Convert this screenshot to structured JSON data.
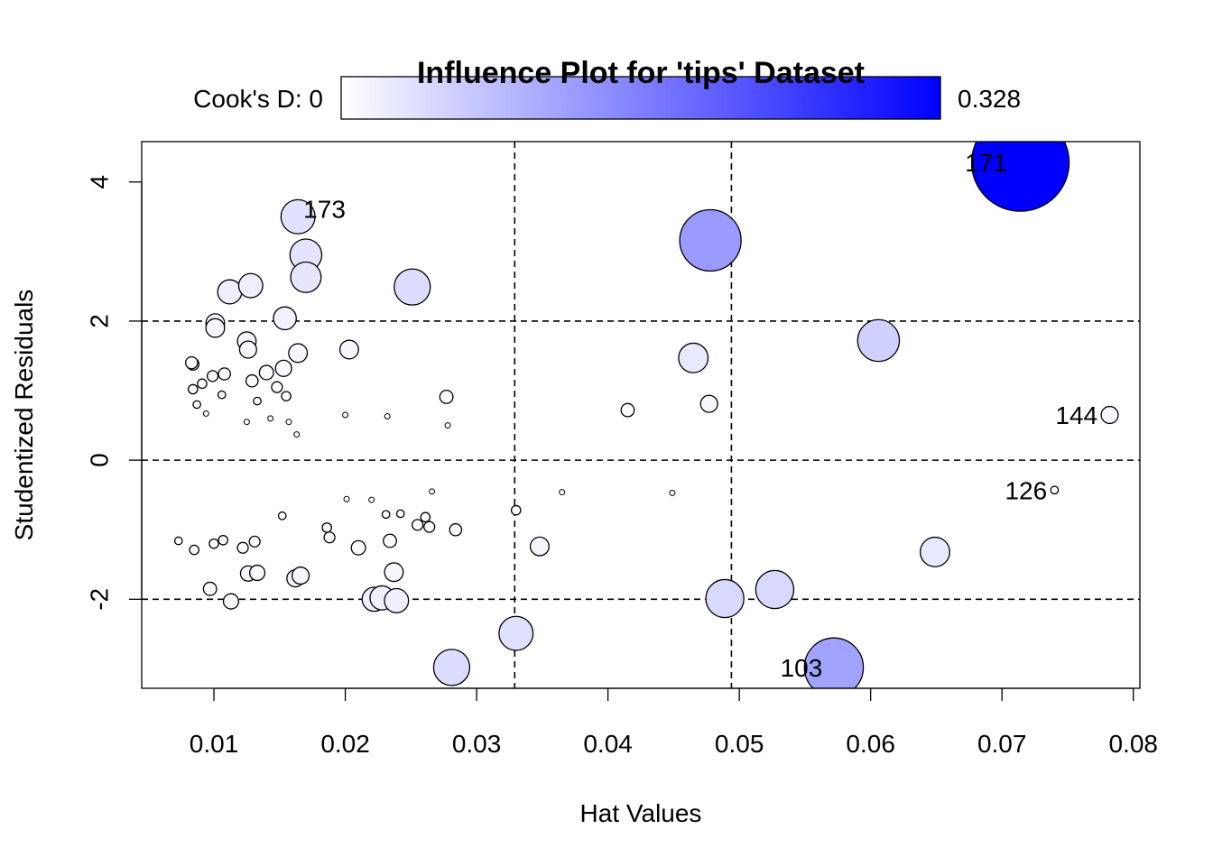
{
  "chart_data": {
    "type": "scatter",
    "title": "Influence Plot for 'tips' Dataset",
    "xlabel": "Hat Values",
    "ylabel": "Studentized Residuals",
    "xlim": [
      0.0045,
      0.0805
    ],
    "ylim": [
      -3.28,
      4.58
    ],
    "x_ticks": [
      0.01,
      0.02,
      0.03,
      0.04,
      0.05,
      0.06,
      0.07,
      0.08
    ],
    "x_tick_labels": [
      "0.01",
      "0.02",
      "0.03",
      "0.04",
      "0.05",
      "0.06",
      "0.07",
      "0.08"
    ],
    "y_ticks": [
      -2,
      0,
      2,
      4
    ],
    "y_tick_labels": [
      "-2",
      "0",
      "2",
      "4"
    ],
    "reference_lines": {
      "h": [
        -2,
        0,
        2
      ],
      "v": [
        0.0329,
        0.0494
      ]
    },
    "legend": {
      "label_min": "Cook's D: 0",
      "label_max": "0.328",
      "color_low": "#ffffff",
      "color_high": "#0000ff"
    },
    "points": [
      {
        "x": 0.0714,
        "y": 4.28,
        "d": 0.328,
        "label": "171"
      },
      {
        "x": 0.0164,
        "y": 3.5,
        "d": 0.04,
        "label": "173"
      },
      {
        "x": 0.0478,
        "y": 3.16,
        "d": 0.13
      },
      {
        "x": 0.017,
        "y": 2.95,
        "d": 0.035
      },
      {
        "x": 0.017,
        "y": 2.63,
        "d": 0.032
      },
      {
        "x": 0.0251,
        "y": 2.49,
        "d": 0.045
      },
      {
        "x": 0.0112,
        "y": 2.42,
        "d": 0.02
      },
      {
        "x": 0.0128,
        "y": 2.51,
        "d": 0.02
      },
      {
        "x": 0.0154,
        "y": 2.04,
        "d": 0.018
      },
      {
        "x": 0.0101,
        "y": 1.97,
        "d": 0.012
      },
      {
        "x": 0.0101,
        "y": 1.9,
        "d": 0.012
      },
      {
        "x": 0.0125,
        "y": 1.71,
        "d": 0.012
      },
      {
        "x": 0.0126,
        "y": 1.59,
        "d": 0.01
      },
      {
        "x": 0.0164,
        "y": 1.54,
        "d": 0.012
      },
      {
        "x": 0.0203,
        "y": 1.59,
        "d": 0.012
      },
      {
        "x": 0.0606,
        "y": 1.72,
        "d": 0.06
      },
      {
        "x": 0.0465,
        "y": 1.47,
        "d": 0.03
      },
      {
        "x": 0.0153,
        "y": 1.32,
        "d": 0.009
      },
      {
        "x": 0.014,
        "y": 1.26,
        "d": 0.007
      },
      {
        "x": 0.0084,
        "y": 1.38,
        "d": 0.005
      },
      {
        "x": 0.0083,
        "y": 1.4,
        "d": 0.005
      },
      {
        "x": 0.0108,
        "y": 1.24,
        "d": 0.005
      },
      {
        "x": 0.0099,
        "y": 1.21,
        "d": 0.004
      },
      {
        "x": 0.0129,
        "y": 1.14,
        "d": 0.005
      },
      {
        "x": 0.0148,
        "y": 1.05,
        "d": 0.004
      },
      {
        "x": 0.0084,
        "y": 1.02,
        "d": 0.003
      },
      {
        "x": 0.0091,
        "y": 1.1,
        "d": 0.003
      },
      {
        "x": 0.0106,
        "y": 0.94,
        "d": 0.002
      },
      {
        "x": 0.0155,
        "y": 0.92,
        "d": 0.003
      },
      {
        "x": 0.0277,
        "y": 0.91,
        "d": 0.006
      },
      {
        "x": 0.0477,
        "y": 0.81,
        "d": 0.01
      },
      {
        "x": 0.0415,
        "y": 0.72,
        "d": 0.006
      },
      {
        "x": 0.0782,
        "y": 0.65,
        "d": 0.01,
        "label": "144"
      },
      {
        "x": 0.0133,
        "y": 0.85,
        "d": 0.002
      },
      {
        "x": 0.0087,
        "y": 0.8,
        "d": 0.002
      },
      {
        "x": 0.02,
        "y": 0.65,
        "d": 0.001
      },
      {
        "x": 0.0232,
        "y": 0.63,
        "d": 0.001
      },
      {
        "x": 0.0278,
        "y": 0.5,
        "d": 0.001
      },
      {
        "x": 0.0094,
        "y": 0.67,
        "d": 0.001
      },
      {
        "x": 0.0125,
        "y": 0.55,
        "d": 0.001
      },
      {
        "x": 0.0157,
        "y": 0.55,
        "d": 0.001
      },
      {
        "x": 0.0163,
        "y": 0.37,
        "d": 0.001
      },
      {
        "x": 0.0143,
        "y": 0.6,
        "d": 0.001
      },
      {
        "x": 0.074,
        "y": -0.43,
        "d": 0.002,
        "label": "126"
      },
      {
        "x": 0.0449,
        "y": -0.47,
        "d": 0.001
      },
      {
        "x": 0.0365,
        "y": -0.46,
        "d": 0.001
      },
      {
        "x": 0.0266,
        "y": -0.45,
        "d": 0.001
      },
      {
        "x": 0.0201,
        "y": -0.56,
        "d": 0.001
      },
      {
        "x": 0.022,
        "y": -0.57,
        "d": 0.001
      },
      {
        "x": 0.033,
        "y": -0.72,
        "d": 0.003
      },
      {
        "x": 0.0242,
        "y": -0.77,
        "d": 0.002
      },
      {
        "x": 0.0231,
        "y": -0.78,
        "d": 0.002
      },
      {
        "x": 0.0261,
        "y": -0.82,
        "d": 0.003
      },
      {
        "x": 0.0255,
        "y": -0.93,
        "d": 0.004
      },
      {
        "x": 0.0264,
        "y": -0.96,
        "d": 0.004
      },
      {
        "x": 0.0284,
        "y": -1.0,
        "d": 0.005
      },
      {
        "x": 0.0186,
        "y": -0.97,
        "d": 0.003
      },
      {
        "x": 0.0188,
        "y": -1.11,
        "d": 0.004
      },
      {
        "x": 0.0234,
        "y": -1.16,
        "d": 0.006
      },
      {
        "x": 0.021,
        "y": -1.26,
        "d": 0.007
      },
      {
        "x": 0.0348,
        "y": -1.24,
        "d": 0.012
      },
      {
        "x": 0.0649,
        "y": -1.32,
        "d": 0.03
      },
      {
        "x": 0.0131,
        "y": -1.17,
        "d": 0.004
      },
      {
        "x": 0.0122,
        "y": -1.26,
        "d": 0.004
      },
      {
        "x": 0.01,
        "y": -1.2,
        "d": 0.003
      },
      {
        "x": 0.0107,
        "y": -1.15,
        "d": 0.003
      },
      {
        "x": 0.0085,
        "y": -1.29,
        "d": 0.003
      },
      {
        "x": 0.0073,
        "y": -1.16,
        "d": 0.002
      },
      {
        "x": 0.0152,
        "y": -0.8,
        "d": 0.002
      },
      {
        "x": 0.0126,
        "y": -1.63,
        "d": 0.008
      },
      {
        "x": 0.0133,
        "y": -1.62,
        "d": 0.008
      },
      {
        "x": 0.0162,
        "y": -1.7,
        "d": 0.01
      },
      {
        "x": 0.0166,
        "y": -1.66,
        "d": 0.01
      },
      {
        "x": 0.0237,
        "y": -1.61,
        "d": 0.012
      },
      {
        "x": 0.0097,
        "y": -1.85,
        "d": 0.006
      },
      {
        "x": 0.0113,
        "y": -2.03,
        "d": 0.008
      },
      {
        "x": 0.0222,
        "y": -2.0,
        "d": 0.02
      },
      {
        "x": 0.0228,
        "y": -1.98,
        "d": 0.02
      },
      {
        "x": 0.0239,
        "y": -2.02,
        "d": 0.02
      },
      {
        "x": 0.0527,
        "y": -1.86,
        "d": 0.05
      },
      {
        "x": 0.0489,
        "y": -1.99,
        "d": 0.05
      },
      {
        "x": 0.033,
        "y": -2.49,
        "d": 0.04
      },
      {
        "x": 0.0281,
        "y": -2.98,
        "d": 0.045
      },
      {
        "x": 0.0572,
        "y": -2.98,
        "d": 0.12,
        "label": "103"
      }
    ]
  }
}
